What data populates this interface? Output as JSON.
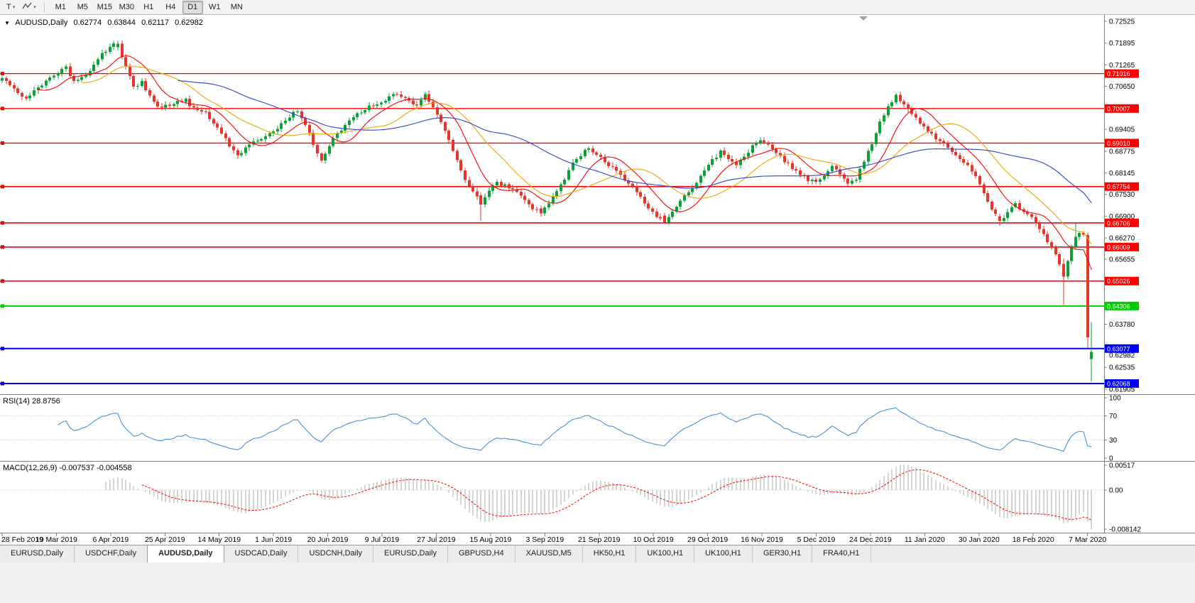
{
  "toolbar": {
    "t_button": "T",
    "timeframes": [
      "M1",
      "M5",
      "M15",
      "M30",
      "H1",
      "H4",
      "D1",
      "W1",
      "MN"
    ],
    "active_timeframe": "D1"
  },
  "chart": {
    "title": "AUDUSD,Daily",
    "ohlc": {
      "open": "0.62774",
      "high": "0.63844",
      "low": "0.62117",
      "close": "0.62982"
    }
  },
  "rsi": {
    "label": "RSI(14) 28.8756",
    "axis_labels": [
      "100",
      "70",
      "30",
      "0"
    ]
  },
  "macd": {
    "label": "MACD(12,26,9) -0.007537 -0.004558",
    "axis_labels": [
      "0.00517",
      "0.00",
      "-0.008142"
    ]
  },
  "y_axis": {
    "tick_labels": [
      "0.72525",
      "0.71895",
      "0.71265",
      "0.70650",
      "0.69405",
      "0.68775",
      "0.68145",
      "0.67530",
      "0.66900",
      "0.66270",
      "0.65655",
      "0.63780",
      "0.62535",
      "0.61905"
    ],
    "current_price": "0.62982"
  },
  "x_axis": {
    "labels": [
      "28 Feb 2019",
      "19 Mar 2019",
      "6 Apr 2019",
      "25 Apr 2019",
      "14 May 2019",
      "1 Jun 2019",
      "20 Jun 2019",
      "9 Jul 2019",
      "27 Jul 2019",
      "15 Aug 2019",
      "3 Sep 2019",
      "21 Sep 2019",
      "10 Oct 2019",
      "29 Oct 2019",
      "16 Nov 2019",
      "5 Dec 2019",
      "24 Dec 2019",
      "11 Jan 2020",
      "30 Jan 2020",
      "18 Feb 2020",
      "7 Mar 2020"
    ]
  },
  "tabs": [
    {
      "label": "EURUSD,Daily",
      "active": false
    },
    {
      "label": "USDCHF,Daily",
      "active": false
    },
    {
      "label": "AUDUSD,Daily",
      "active": true
    },
    {
      "label": "USDCAD,Daily",
      "active": false
    },
    {
      "label": "USDCNH,Daily",
      "active": false
    },
    {
      "label": "EURUSD,Daily",
      "active": false
    },
    {
      "label": "GBPUSD,H4",
      "active": false
    },
    {
      "label": "XAUUSD,M5",
      "active": false
    },
    {
      "label": "HK50,H1",
      "active": false
    },
    {
      "label": "UK100,H1",
      "active": false
    },
    {
      "label": "UK100,H1",
      "active": false
    },
    {
      "label": "GER30,H1",
      "active": false
    },
    {
      "label": "FRA40,H1",
      "active": false
    }
  ],
  "chart_data": {
    "type": "candlestick",
    "symbol": "AUDUSD",
    "timeframe": "Daily",
    "title": "AUDUSD,Daily 0.62774 0.63844 0.62117 0.62982",
    "last_bar": {
      "open": 0.62774,
      "high": 0.63844,
      "low": 0.62117,
      "close": 0.62982
    },
    "date_range": [
      "28 Feb 2019",
      "7 Mar 2020"
    ],
    "bars_count": 274,
    "bar_spacing": 5.62,
    "label_step_bars": 13.6,
    "price_axis": {
      "min": 0.6176,
      "max": 0.7271
    },
    "style": {
      "up_color": "#0ba138",
      "down_color": "#e6352b",
      "hist_color": "#ababab",
      "rsi_color": "#4a90d9",
      "signal_color": "#ff0000",
      "level_color": "#c8c8c8",
      "axis_line_color": "#808080"
    },
    "moving_averages": [
      {
        "period": 10,
        "color": "#ff0000"
      },
      {
        "period": 21,
        "color": "#f0a500"
      },
      {
        "period": 45,
        "color": "#2e45c8"
      }
    ],
    "horizontal_lines": [
      {
        "price": 0.71016,
        "label": "0.71016",
        "color": "#ff0000",
        "width": 1.3
      },
      {
        "price": 0.70007,
        "label": "0.70007",
        "color": "#ff0000",
        "width": 1.3
      },
      {
        "price": 0.6901,
        "label": "0.69010",
        "color": "#ff0000",
        "width": 1.3
      },
      {
        "price": 0.67754,
        "label": "0.67754",
        "color": "#ff0000",
        "width": 1.6
      },
      {
        "price": 0.66706,
        "label": "0.66706",
        "color": "#ff0000",
        "width": 1.6
      },
      {
        "price": 0.66009,
        "label": "0.66009",
        "color": "#ff0000",
        "width": 1.6
      },
      {
        "price": 0.65026,
        "label": "0.65026",
        "color": "#ff0000",
        "width": 1.6
      },
      {
        "price": 0.64306,
        "label": "0.64306",
        "color": "#00cc00",
        "width": 2
      },
      {
        "price": 0.63077,
        "label": "0.63077",
        "color": "#0000ff",
        "width": 2
      },
      {
        "price": 0.62068,
        "label": "0.62068",
        "color": "#0000ff",
        "width": 2
      }
    ],
    "rsi": {
      "period": 14,
      "last_value": 28.8756,
      "levels": [
        70,
        30
      ],
      "range": [
        0,
        100
      ]
    },
    "macd": {
      "fast": 12,
      "slow": 26,
      "signal": 9,
      "last_values": [
        -0.007537,
        -0.004558
      ],
      "axis": {
        "top_value": 0.00517,
        "zero": 0.0,
        "bottom_value": -0.008142
      }
    },
    "price_path_anchors": [
      [
        0,
        0.7093
      ],
      [
        2,
        0.7068
      ],
      [
        4,
        0.704
      ],
      [
        6,
        0.7028
      ],
      [
        9,
        0.7062
      ],
      [
        12,
        0.7088
      ],
      [
        14,
        0.7106
      ],
      [
        16,
        0.7118
      ],
      [
        18,
        0.7082
      ],
      [
        21,
        0.7096
      ],
      [
        23,
        0.7128
      ],
      [
        25,
        0.7158
      ],
      [
        27,
        0.718
      ],
      [
        29,
        0.7188
      ],
      [
        31,
        0.712
      ],
      [
        33,
        0.7058
      ],
      [
        35,
        0.7076
      ],
      [
        37,
        0.704
      ],
      [
        39,
        0.7012
      ],
      [
        41,
        0.7006
      ],
      [
        43,
        0.7018
      ],
      [
        46,
        0.7024
      ],
      [
        48,
        0.6998
      ],
      [
        51,
        0.6986
      ],
      [
        53,
        0.6962
      ],
      [
        55,
        0.693
      ],
      [
        57,
        0.6892
      ],
      [
        59,
        0.6868
      ],
      [
        61,
        0.6884
      ],
      [
        63,
        0.6902
      ],
      [
        66,
        0.6918
      ],
      [
        68,
        0.6934
      ],
      [
        70,
        0.6956
      ],
      [
        72,
        0.698
      ],
      [
        74,
        0.6992
      ],
      [
        76,
        0.6952
      ],
      [
        78,
        0.6898
      ],
      [
        80,
        0.6852
      ],
      [
        82,
        0.6898
      ],
      [
        84,
        0.6928
      ],
      [
        86,
        0.695
      ],
      [
        88,
        0.6972
      ],
      [
        90,
        0.6992
      ],
      [
        93,
        0.7012
      ],
      [
        96,
        0.7028
      ],
      [
        98,
        0.7044
      ],
      [
        100,
        0.7034
      ],
      [
        102,
        0.7022
      ],
      [
        104,
        0.7012
      ],
      [
        106,
        0.7038
      ],
      [
        108,
        0.7004
      ],
      [
        110,
        0.6964
      ],
      [
        112,
        0.6908
      ],
      [
        114,
        0.6852
      ],
      [
        116,
        0.6798
      ],
      [
        118,
        0.676
      ],
      [
        120,
        0.6724
      ],
      [
        122,
        0.6766
      ],
      [
        124,
        0.6788
      ],
      [
        127,
        0.6774
      ],
      [
        129,
        0.6758
      ],
      [
        131,
        0.6738
      ],
      [
        133,
        0.6712
      ],
      [
        135,
        0.6698
      ],
      [
        137,
        0.6726
      ],
      [
        139,
        0.6762
      ],
      [
        141,
        0.68
      ],
      [
        143,
        0.684
      ],
      [
        145,
        0.6868
      ],
      [
        147,
        0.6886
      ],
      [
        149,
        0.6864
      ],
      [
        152,
        0.684
      ],
      [
        155,
        0.681
      ],
      [
        158,
        0.6776
      ],
      [
        160,
        0.6742
      ],
      [
        162,
        0.6712
      ],
      [
        164,
        0.669
      ],
      [
        166,
        0.6672
      ],
      [
        168,
        0.67
      ],
      [
        170,
        0.673
      ],
      [
        172,
        0.676
      ],
      [
        174,
        0.679
      ],
      [
        176,
        0.682
      ],
      [
        178,
        0.685
      ],
      [
        180,
        0.6874
      ],
      [
        182,
        0.6858
      ],
      [
        184,
        0.6842
      ],
      [
        186,
        0.6864
      ],
      [
        188,
        0.689
      ],
      [
        190,
        0.6914
      ],
      [
        192,
        0.6896
      ],
      [
        194,
        0.6872
      ],
      [
        196,
        0.685
      ],
      [
        198,
        0.6828
      ],
      [
        200,
        0.681
      ],
      [
        202,
        0.6796
      ],
      [
        204,
        0.6788
      ],
      [
        206,
        0.6812
      ],
      [
        208,
        0.6832
      ],
      [
        210,
        0.6808
      ],
      [
        212,
        0.6782
      ],
      [
        214,
        0.6798
      ],
      [
        216,
        0.6846
      ],
      [
        218,
        0.6902
      ],
      [
        220,
        0.696
      ],
      [
        222,
        0.7006
      ],
      [
        224,
        0.7036
      ],
      [
        226,
        0.7012
      ],
      [
        228,
        0.6986
      ],
      [
        230,
        0.6956
      ],
      [
        232,
        0.6936
      ],
      [
        234,
        0.6916
      ],
      [
        236,
        0.6896
      ],
      [
        238,
        0.6876
      ],
      [
        240,
        0.6858
      ],
      [
        242,
        0.684
      ],
      [
        244,
        0.68
      ],
      [
        246,
        0.6756
      ],
      [
        248,
        0.6712
      ],
      [
        250,
        0.6676
      ],
      [
        252,
        0.6702
      ],
      [
        254,
        0.6726
      ],
      [
        256,
        0.6704
      ],
      [
        258,
        0.6684
      ],
      [
        260,
        0.6655
      ],
      [
        262,
        0.662
      ],
      [
        264,
        0.6582
      ],
      [
        265,
        0.655
      ],
      [
        266,
        0.6515
      ],
      [
        267,
        0.6558
      ],
      [
        268,
        0.66
      ],
      [
        269,
        0.663
      ],
      [
        270,
        0.6642
      ],
      [
        271,
        0.6638
      ],
      [
        272,
        0.634
      ],
      [
        273,
        0.6298
      ]
    ],
    "special_bars": [
      {
        "i": 29,
        "o": 0.7178,
        "h": 0.7196,
        "l": 0.7168,
        "c": 0.7188
      },
      {
        "i": 120,
        "o": 0.675,
        "h": 0.6758,
        "l": 0.6677,
        "c": 0.6724
      },
      {
        "i": 135,
        "o": 0.6712,
        "h": 0.672,
        "l": 0.6689,
        "c": 0.6698
      },
      {
        "i": 166,
        "o": 0.6692,
        "h": 0.67,
        "l": 0.6671,
        "c": 0.6672
      },
      {
        "i": 250,
        "o": 0.669,
        "h": 0.6698,
        "l": 0.6662,
        "c": 0.6676
      },
      {
        "i": 266,
        "o": 0.6552,
        "h": 0.6568,
        "l": 0.6434,
        "c": 0.6515
      },
      {
        "i": 269,
        "o": 0.6602,
        "h": 0.6672,
        "l": 0.6595,
        "c": 0.663
      },
      {
        "i": 272,
        "o": 0.6635,
        "h": 0.6642,
        "l": 0.6308,
        "c": 0.634
      },
      {
        "i": 273,
        "o": 0.62774,
        "h": 0.63844,
        "l": 0.62117,
        "c": 0.62982
      }
    ]
  }
}
